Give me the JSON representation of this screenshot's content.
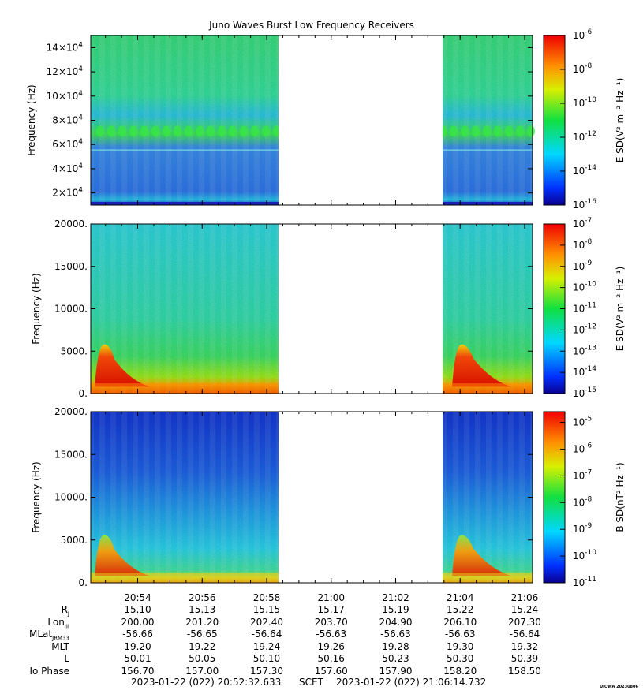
{
  "title": "Juno Waves Burst Low Frequency Receivers",
  "panels": [
    {
      "ylabel": "Frequency (Hz)",
      "yticks": [
        "14×10",
        "12×10",
        "10×10",
        "8×10",
        "6×10",
        "4×10",
        "2×10"
      ],
      "ytick_exponent": "4",
      "yvalues": [
        140000,
        120000,
        100000,
        80000,
        60000,
        40000,
        20000
      ],
      "ylim": [
        10000,
        150000
      ],
      "colorbar_label": "E SD(V² m⁻² Hz⁻¹)",
      "colorbar_ticks": [
        "-6",
        "-8",
        "-10",
        "-12",
        "-14",
        "-16"
      ],
      "colorbar_range": [
        -16,
        -6
      ]
    },
    {
      "ylabel": "Frequency (Hz)",
      "yticks": [
        "20000.",
        "15000.",
        "10000.",
        "5000.",
        "0."
      ],
      "yvalues": [
        20000,
        15000,
        10000,
        5000,
        0
      ],
      "ylim": [
        0,
        20000
      ],
      "colorbar_label": "E SD(V² m⁻² Hz⁻¹)",
      "colorbar_ticks": [
        "-7",
        "-8",
        "-9",
        "-10",
        "-11",
        "-12",
        "-13",
        "-14",
        "-15"
      ],
      "colorbar_range": [
        -15,
        -7
      ]
    },
    {
      "ylabel": "Frequency (Hz)",
      "yticks": [
        "20000.",
        "15000.",
        "10000.",
        "5000.",
        "0."
      ],
      "yvalues": [
        20000,
        15000,
        10000,
        5000,
        0
      ],
      "ylim": [
        0,
        20000
      ],
      "colorbar_label": "B SD(nT² Hz⁻¹)",
      "colorbar_ticks": [
        "-5",
        "-6",
        "-7",
        "-8",
        "-9",
        "-10",
        "-11"
      ],
      "colorbar_range": [
        -11,
        -4.6
      ]
    }
  ],
  "chart_data": {
    "type": "heatmap",
    "title": "Juno Waves Burst Low Frequency Receivers",
    "xlabel": "SCET",
    "time_ticks": [
      "20:54",
      "20:56",
      "20:58",
      "21:00",
      "21:02",
      "21:04",
      "21:06"
    ],
    "data_gaps": [
      [
        "20:58",
        "21:03"
      ]
    ],
    "series": [
      {
        "name": "E SD(V² m⁻² Hz⁻¹)",
        "frequency_range_hz": [
          10000,
          150000
        ]
      },
      {
        "name": "E SD(V² m⁻² Hz⁻¹)",
        "frequency_range_hz": [
          0,
          20000
        ]
      },
      {
        "name": "B SD(nT² Hz⁻¹)",
        "frequency_range_hz": [
          0,
          20000
        ]
      }
    ]
  },
  "ephemeris": {
    "rows": [
      {
        "label": "R",
        "sub": "J",
        "values": [
          "15.10",
          "15.13",
          "15.15",
          "15.17",
          "15.19",
          "15.22",
          "15.24"
        ]
      },
      {
        "label": "Lon",
        "sub": "III",
        "values": [
          "200.00",
          "201.20",
          "202.40",
          "203.70",
          "204.90",
          "206.10",
          "207.30"
        ]
      },
      {
        "label": "MLat",
        "sub": "JRM33",
        "values": [
          "-56.66",
          "-56.65",
          "-56.64",
          "-56.63",
          "-56.63",
          "-56.63",
          "-56.64"
        ]
      },
      {
        "label": "MLT",
        "sub": "",
        "values": [
          "19.20",
          "19.22",
          "19.24",
          "19.26",
          "19.28",
          "19.30",
          "19.32"
        ]
      },
      {
        "label": "L",
        "sub": "",
        "values": [
          "50.01",
          "50.05",
          "50.10",
          "50.16",
          "50.23",
          "50.30",
          "50.39"
        ]
      },
      {
        "label": "Io Phase",
        "sub": "",
        "values": [
          "156.70",
          "157.00",
          "157.30",
          "157.60",
          "157.90",
          "158.20",
          "158.50"
        ]
      }
    ]
  },
  "footer": {
    "start": "2023-01-22 (022) 20:52:32.633",
    "scet": "SCET",
    "end": "2023-01-22 (022) 21:06:14.732"
  },
  "stamp": "UIOWA 20230806",
  "colors": {
    "low": "#1a00a8",
    "mid": "#38e84e",
    "high": "#e80000",
    "gap": "#ffffff"
  }
}
